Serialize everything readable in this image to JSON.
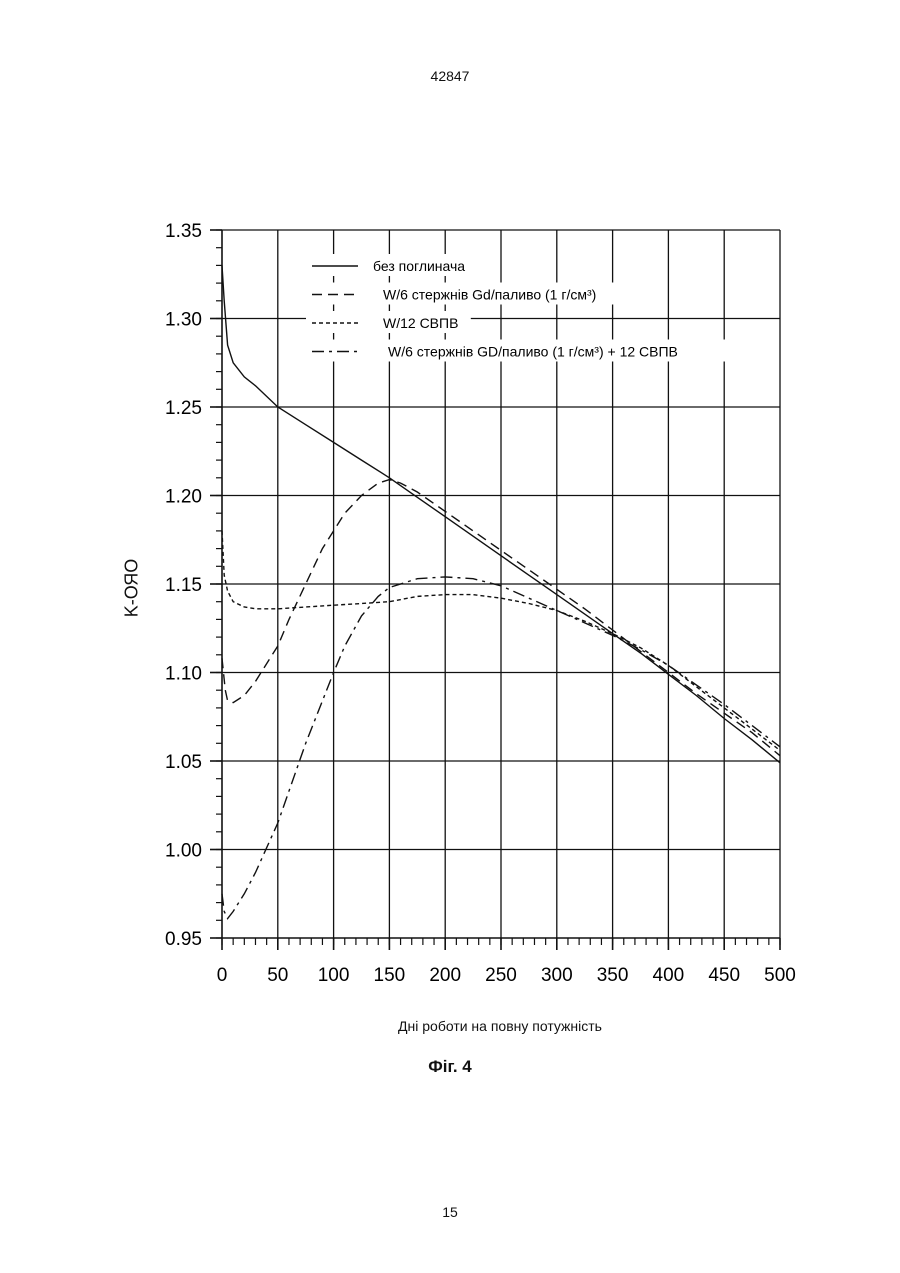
{
  "page": {
    "header_number": "42847",
    "footer_number": "15",
    "figure_caption": "Фіг. 4"
  },
  "chart_data": {
    "type": "line",
    "title": "",
    "xlabel": "Дні роботи на повну потужність",
    "ylabel": "K-ОЯО",
    "xlim": [
      0,
      500
    ],
    "ylim": [
      0.95,
      1.35
    ],
    "x_ticks": [
      0,
      50,
      100,
      150,
      200,
      250,
      300,
      350,
      400,
      450,
      500
    ],
    "x_tick_labels": [
      "0",
      "50",
      "100",
      "150",
      "200",
      "250",
      "300",
      "350",
      "400",
      "450",
      "500"
    ],
    "y_ticks": [
      0.95,
      1.0,
      1.05,
      1.1,
      1.15,
      1.2,
      1.25,
      1.3,
      1.35
    ],
    "y_tick_labels": [
      "0.95",
      "1.00",
      "1.05",
      "1.10",
      "1.15",
      "1.20",
      "1.25",
      "1.30",
      "1.35"
    ],
    "grid": true,
    "legend_position": "top",
    "series": [
      {
        "name": "без поглинача",
        "style": "solid",
        "x": [
          0,
          2,
          5,
          10,
          20,
          30,
          50,
          75,
          100,
          125,
          150,
          175,
          200,
          225,
          250,
          275,
          300,
          325,
          350,
          375,
          400,
          425,
          450,
          475,
          500
        ],
        "y": [
          1.33,
          1.31,
          1.285,
          1.275,
          1.267,
          1.262,
          1.25,
          1.24,
          1.23,
          1.22,
          1.21,
          1.199,
          1.188,
          1.177,
          1.166,
          1.155,
          1.144,
          1.133,
          1.122,
          1.111,
          1.099,
          1.087,
          1.074,
          1.062,
          1.049
        ]
      },
      {
        "name": "W/6 стержнів Gd/паливо (1 г/см³)",
        "style": "dashed",
        "x": [
          0,
          3,
          5,
          10,
          20,
          30,
          40,
          50,
          60,
          75,
          90,
          100,
          110,
          125,
          140,
          150,
          160,
          175,
          200,
          225,
          250,
          275,
          300,
          325,
          350,
          375,
          400,
          425,
          450,
          475,
          500
        ],
        "y": [
          1.108,
          1.09,
          1.084,
          1.083,
          1.087,
          1.095,
          1.105,
          1.115,
          1.13,
          1.15,
          1.17,
          1.18,
          1.19,
          1.2,
          1.207,
          1.209,
          1.207,
          1.202,
          1.191,
          1.18,
          1.169,
          1.158,
          1.147,
          1.136,
          1.124,
          1.112,
          1.1,
          1.088,
          1.077,
          1.066,
          1.053
        ]
      },
      {
        "name": "W/12 СВПВ",
        "style": "dotted",
        "x": [
          0,
          2,
          5,
          10,
          20,
          30,
          50,
          75,
          100,
          125,
          150,
          175,
          200,
          225,
          250,
          275,
          300,
          325,
          350,
          375,
          400,
          425,
          450,
          475,
          500
        ],
        "y": [
          1.18,
          1.155,
          1.146,
          1.14,
          1.137,
          1.136,
          1.136,
          1.137,
          1.138,
          1.139,
          1.14,
          1.143,
          1.144,
          1.144,
          1.142,
          1.139,
          1.135,
          1.129,
          1.122,
          1.114,
          1.104,
          1.092,
          1.08,
          1.068,
          1.056
        ]
      },
      {
        "name": "W/6 стержнів GD/паливо (1 г/см³) + 12 СВПВ",
        "style": "dashdot",
        "x": [
          0,
          2,
          5,
          10,
          20,
          30,
          50,
          75,
          100,
          110,
          125,
          140,
          150,
          175,
          200,
          225,
          250,
          275,
          300,
          325,
          350,
          375,
          400,
          425,
          450,
          475,
          500
        ],
        "y": [
          0.975,
          0.965,
          0.961,
          0.965,
          0.975,
          0.987,
          1.015,
          1.06,
          1.1,
          1.115,
          1.132,
          1.143,
          1.148,
          1.153,
          1.154,
          1.153,
          1.149,
          1.142,
          1.135,
          1.128,
          1.121,
          1.113,
          1.104,
          1.093,
          1.082,
          1.07,
          1.058
        ]
      }
    ]
  }
}
